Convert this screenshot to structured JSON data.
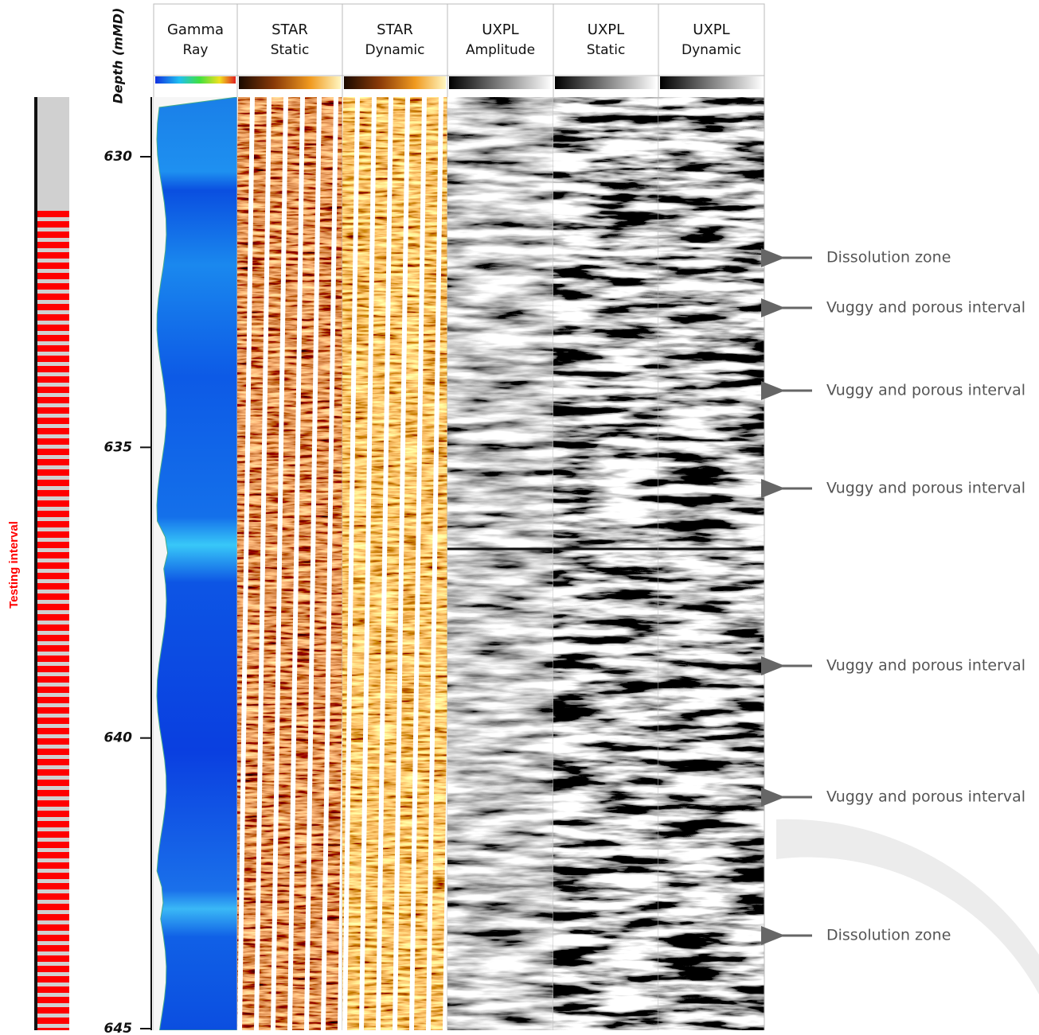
{
  "depth_axis": {
    "label": "Depth (mMD)",
    "ticks": [
      "630",
      "635",
      "640",
      "645"
    ]
  },
  "tracks": [
    {
      "lines": [
        "Gamma",
        "Ray"
      ]
    },
    {
      "lines": [
        "STAR",
        "Static"
      ]
    },
    {
      "lines": [
        "STAR",
        "Dynamic"
      ]
    },
    {
      "lines": [
        "UXPL",
        "Amplitude"
      ]
    },
    {
      "lines": [
        "UXPL",
        "Static"
      ]
    },
    {
      "lines": [
        "UXPL",
        "Dynamic"
      ]
    }
  ],
  "annotations": [
    "Dissolution zone",
    "Vuggy and porous interval",
    "Vuggy and porous interval",
    "Vuggy and porous interval",
    "Vuggy and porous interval",
    "Vuggy and porous interval",
    "Dissolution zone"
  ],
  "testing_interval": "Testing interval"
}
